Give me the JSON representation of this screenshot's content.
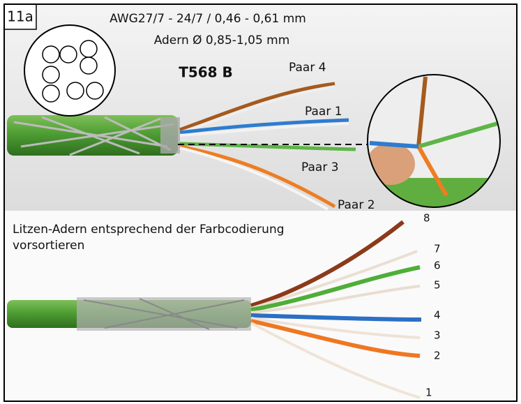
{
  "header": {
    "step": "11a",
    "spec_line1": "AWG27/7 - 24/7 /  0,46 - 0,61 mm",
    "spec_line2": "Adern Ø   0,85-1,05 mm",
    "standard": "T568 B"
  },
  "top_panel": {
    "pairs": [
      "Paar 4",
      "Paar 1",
      "Paar 3",
      "Paar 2"
    ]
  },
  "bottom_panel": {
    "caption": [
      "Litzen-Adern entsprechend der Farbcodierung",
      "vorsortieren"
    ],
    "wire_numbers": [
      "8",
      "7",
      "6",
      "5",
      "4",
      "3",
      "2",
      "1"
    ]
  }
}
